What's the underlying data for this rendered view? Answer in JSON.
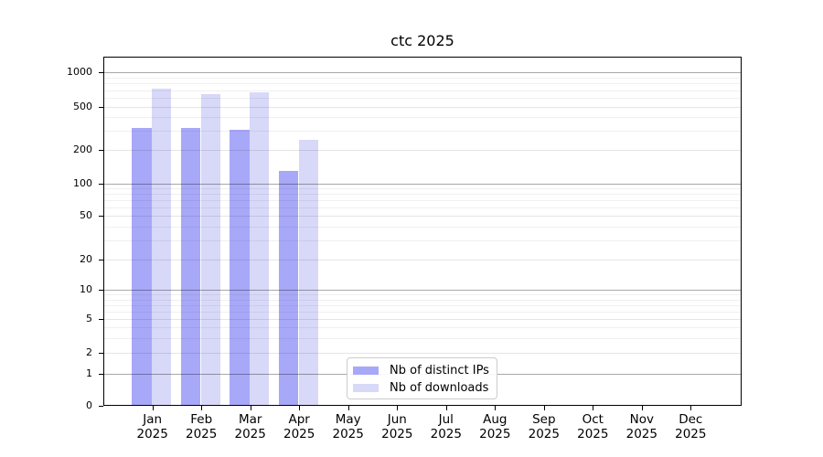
{
  "title": "ctc 2025",
  "chart_data": {
    "type": "bar",
    "title": "ctc 2025",
    "categories": [
      "Jan 2025",
      "Feb 2025",
      "Mar 2025",
      "Apr 2025",
      "May 2025",
      "Jun 2025",
      "Jul 2025",
      "Aug 2025",
      "Sep 2025",
      "Oct 2025",
      "Nov 2025",
      "Dec 2025"
    ],
    "x_tick_month": [
      "Jan",
      "Feb",
      "Mar",
      "Apr",
      "May",
      "Jun",
      "Jul",
      "Aug",
      "Sep",
      "Oct",
      "Nov",
      "Dec"
    ],
    "x_tick_year": "2025",
    "series": [
      {
        "name": "Nb of distinct IPs",
        "color": "#a8a8f8",
        "values": [
          320,
          320,
          310,
          130,
          0,
          0,
          0,
          0,
          0,
          0,
          0,
          0
        ]
      },
      {
        "name": "Nb of downloads",
        "color": "#d8d8f8",
        "values": [
          715,
          640,
          670,
          250,
          0,
          0,
          0,
          0,
          0,
          0,
          0,
          0
        ]
      }
    ],
    "yticks": [
      0,
      1,
      2,
      5,
      10,
      20,
      50,
      100,
      200,
      500,
      1000
    ],
    "yscale": "symlog",
    "ylim": [
      0,
      1400
    ],
    "xlabel": "",
    "ylabel": "",
    "grid": true,
    "legend_position": "lower-center-inside"
  }
}
